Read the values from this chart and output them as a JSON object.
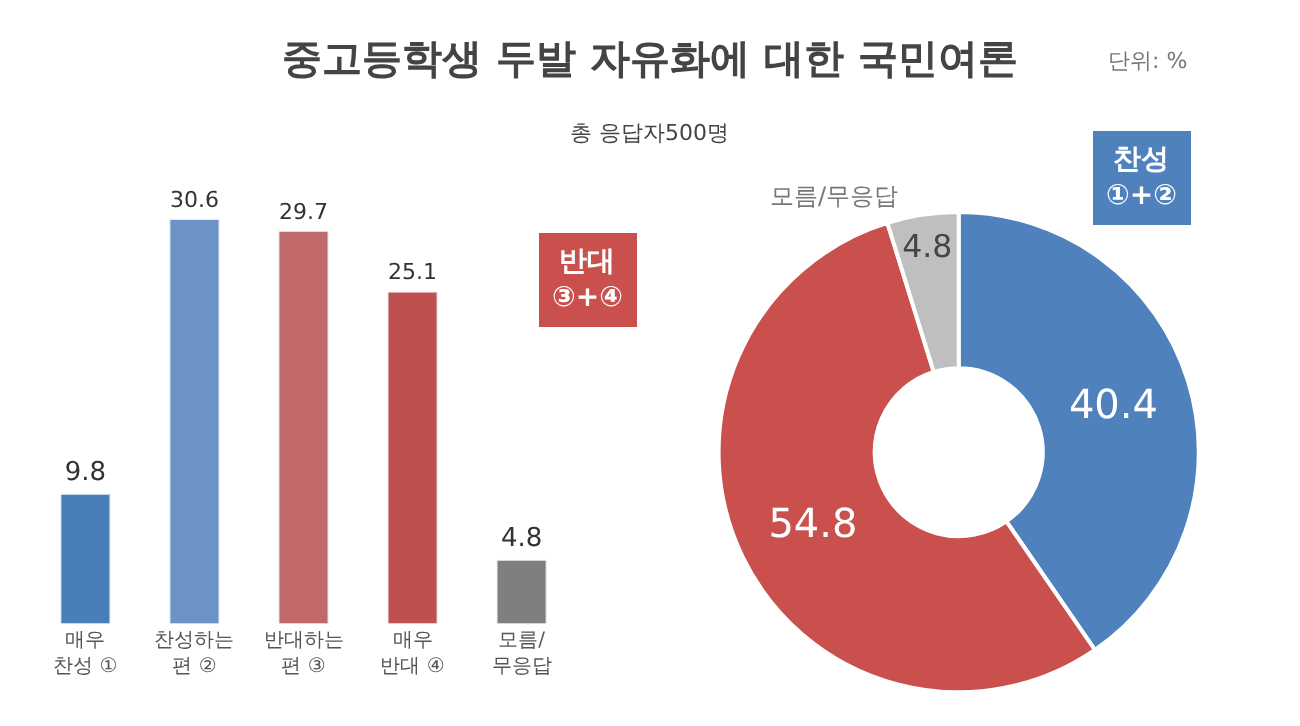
{
  "chart_data": [
    {
      "type": "bar",
      "title": "중고등학생 두발 자유화에 대한 국민여론",
      "subtitle": "총 응답자500명",
      "annotations": [
        "단위: %"
      ],
      "categories": [
        "매우\n찬성 ①",
        "찬성하는\n편 ②",
        "반대하는\n편 ③",
        "매우\n반대 ④",
        "모름/\n무응답"
      ],
      "values": [
        9.8,
        30.6,
        29.7,
        25.1,
        4.8
      ],
      "colors": [
        "#4a7ebb",
        "#6d93c6",
        "#c0686a",
        "#c0504d",
        "#7f7f7f"
      ],
      "data_labels": true
    },
    {
      "type": "donut",
      "categories": [
        "찬성\n①+②",
        "반대\n③+④",
        "모름/무응답"
      ],
      "values": [
        40.4,
        54.8,
        4.8
      ],
      "colors": [
        "#4f81bd",
        "#c9504d",
        "#bfbfbf"
      ],
      "data_labels": true
    }
  ]
}
